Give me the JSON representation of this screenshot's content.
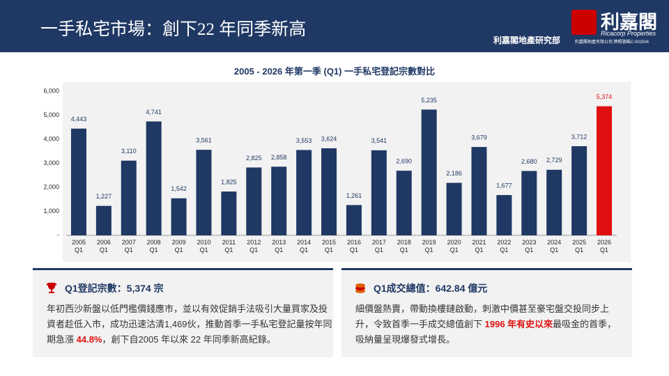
{
  "header": {
    "title": "一手私宅市場：創下22 年同季新高",
    "department": "利嘉閣地產研究部",
    "logo_name": "利嘉閣",
    "logo_en": "Ricacorp Properties",
    "license": "利嘉閣地產有限公司 牌照號碼C-002504"
  },
  "chart_data": {
    "type": "bar",
    "title": "2005 - 2026 年第一季 (Q1) 一手私宅登記宗數對比",
    "categories": [
      "2005 Q1",
      "2006 Q1",
      "2007 Q1",
      "2008 Q1",
      "2009 Q1",
      "2010 Q1",
      "2011 Q1",
      "2012 Q1",
      "2013 Q1",
      "2014 Q1",
      "2015 Q1",
      "2016 Q1",
      "2017 Q1",
      "2018 Q1",
      "2019 Q1",
      "2020 Q1",
      "2021 Q1",
      "2022 Q1",
      "2023 Q1",
      "2024 Q1",
      "2025 Q1",
      "2026 Q1"
    ],
    "values": [
      4443,
      1227,
      3110,
      4741,
      1542,
      3561,
      1825,
      2825,
      2858,
      3553,
      3624,
      1261,
      3541,
      2690,
      5235,
      2186,
      3679,
      1677,
      2680,
      2729,
      3712,
      5374
    ],
    "value_labels": [
      "4,443",
      "1,227",
      "3,110",
      "4,741",
      "1,542",
      "3,561",
      "1,825",
      "2,825",
      "2,858",
      "3,553",
      "3,624",
      "1,261",
      "3,541",
      "2,690",
      "5,235",
      "2,186",
      "3,679",
      "1,677",
      "2,680",
      "2,729",
      "3,712",
      "5,374"
    ],
    "colors": [
      "#1f3864",
      "#1f3864",
      "#1f3864",
      "#1f3864",
      "#1f3864",
      "#1f3864",
      "#1f3864",
      "#1f3864",
      "#1f3864",
      "#1f3864",
      "#1f3864",
      "#1f3864",
      "#1f3864",
      "#1f3864",
      "#1f3864",
      "#1f3864",
      "#1f3864",
      "#1f3864",
      "#1f3864",
      "#1f3864",
      "#1f3864",
      "#e01010"
    ],
    "ylim": [
      0,
      6000
    ],
    "yticks": [
      {
        "value": 0,
        "label": "-"
      },
      {
        "value": 1000,
        "label": "1,000"
      },
      {
        "value": 2000,
        "label": "2,000"
      },
      {
        "value": 3000,
        "label": "3,000"
      },
      {
        "value": 4000,
        "label": "4,000"
      },
      {
        "value": 5000,
        "label": "5,000"
      },
      {
        "value": 6000,
        "label": "6,000"
      }
    ],
    "grid": false
  },
  "boxes": [
    {
      "title": "Q1登記宗數：5,374 宗",
      "body": [
        {
          "text": "年初西沙新盤以低門檻價錢應市，並以有效促銷手法吸引大量買家及投資者趁低入市，成功迅速沽清1,469伙，推動首季一手私宅登記量按年同期急漲 ",
          "emphasis": false
        },
        {
          "text": "44.8%",
          "emphasis": true
        },
        {
          "text": "，創下自2005 年以來 22 年同季新高紀錄。",
          "emphasis": false
        }
      ]
    },
    {
      "title": "Q1成交總值：642.84 億元",
      "body": [
        {
          "text": "細價盤熱賣，帶動換樓鏈啟動，刺激中價甚至豪宅盤交投同步上升，令致首季一手成交總值創下 ",
          "emphasis": false
        },
        {
          "text": "1996 年有史以來",
          "emphasis": true
        },
        {
          "text": "最吸金的首季，吸納量呈現爆發式增長。",
          "emphasis": false
        }
      ]
    }
  ]
}
